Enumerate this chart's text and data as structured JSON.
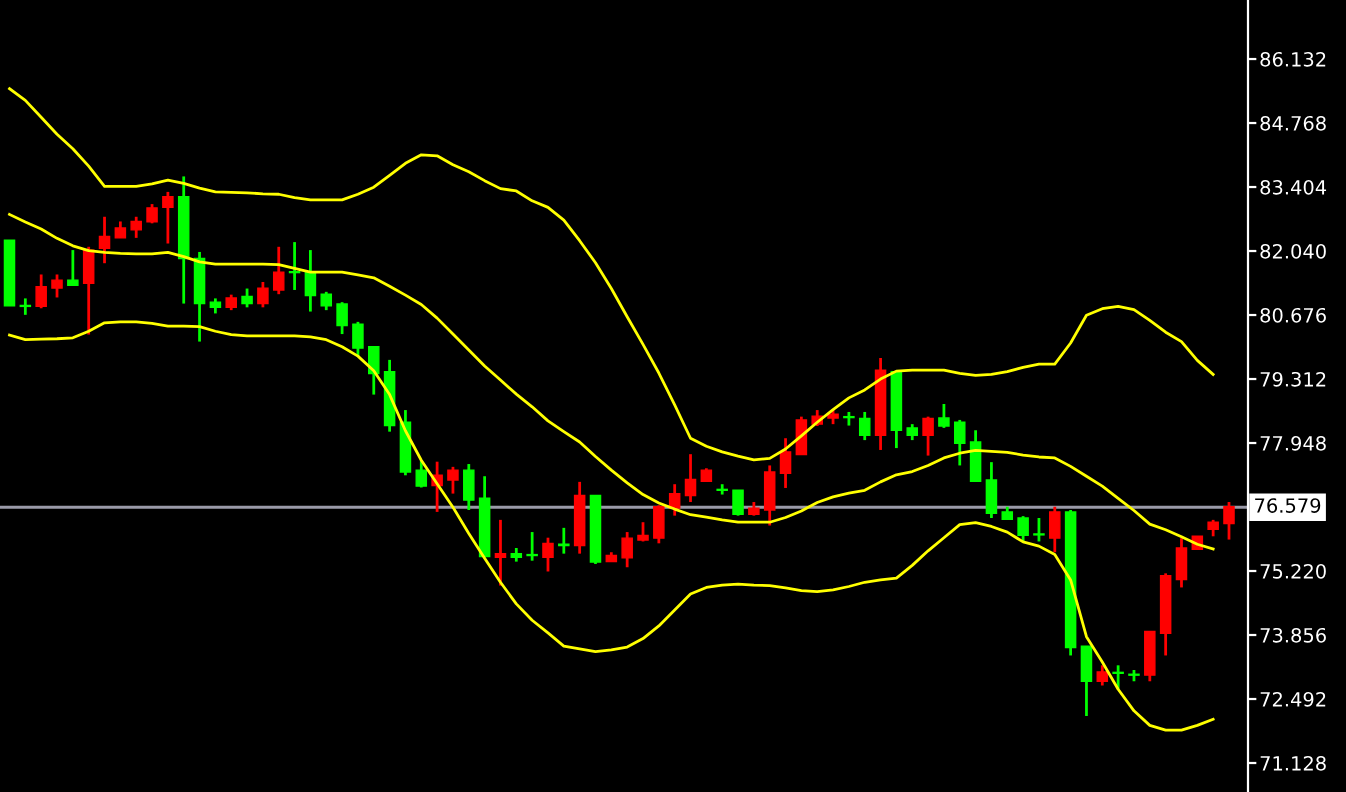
{
  "chart_data": {
    "type": "candlestick",
    "categories": [
      null,
      null,
      null,
      null,
      null,
      null,
      null,
      null,
      null,
      null,
      null,
      null,
      null,
      null,
      null,
      null,
      null,
      null,
      null,
      null,
      null,
      null,
      null,
      null,
      null,
      null,
      null,
      null,
      null,
      null,
      null,
      null,
      null,
      null,
      null,
      null,
      null,
      null,
      null,
      null,
      null,
      null,
      null,
      null,
      null,
      null,
      null,
      null,
      null,
      null,
      null,
      null,
      null,
      null,
      null,
      null,
      null,
      null,
      null,
      null,
      null,
      null,
      null,
      null,
      null,
      null,
      null,
      null,
      null,
      null,
      null,
      null,
      null,
      null,
      null,
      null,
      null,
      null
    ],
    "ohlc": [
      [
        82.27,
        82.27,
        80.87,
        80.87
      ],
      [
        80.86,
        81.03,
        80.68,
        80.86
      ],
      [
        80.86,
        81.54,
        80.82,
        81.28
      ],
      [
        81.25,
        81.54,
        81.05,
        81.42
      ],
      [
        81.42,
        82.06,
        81.31,
        81.31
      ],
      [
        81.35,
        82.13,
        80.26,
        82.06
      ],
      [
        82.1,
        82.77,
        81.78,
        82.35
      ],
      [
        82.32,
        82.67,
        82.32,
        82.53
      ],
      [
        82.49,
        82.77,
        82.32,
        82.67
      ],
      [
        82.66,
        83.04,
        82.63,
        82.96
      ],
      [
        82.97,
        83.3,
        82.2,
        83.2
      ],
      [
        83.2,
        83.63,
        80.92,
        81.88
      ],
      [
        81.88,
        82.02,
        80.11,
        80.92
      ],
      [
        80.95,
        81.03,
        80.71,
        80.84
      ],
      [
        80.84,
        81.11,
        80.78,
        81.04
      ],
      [
        81.07,
        81.24,
        80.84,
        80.92
      ],
      [
        80.92,
        81.38,
        80.84,
        81.25
      ],
      [
        81.21,
        82.13,
        81.12,
        81.59
      ],
      [
        81.6,
        82.23,
        81.21,
        81.58
      ],
      [
        81.59,
        82.06,
        80.75,
        81.09
      ],
      [
        81.12,
        81.17,
        80.78,
        80.87
      ],
      [
        80.91,
        80.95,
        80.27,
        80.45
      ],
      [
        80.48,
        80.53,
        79.79,
        79.97
      ],
      [
        80.0,
        80.0,
        78.98,
        79.43
      ],
      [
        79.47,
        79.72,
        78.19,
        78.32
      ],
      [
        78.39,
        78.65,
        77.26,
        77.33
      ],
      [
        77.37,
        77.58,
        77.0,
        77.03
      ],
      [
        77.04,
        77.55,
        76.48,
        77.26
      ],
      [
        77.16,
        77.44,
        76.87,
        77.37
      ],
      [
        77.37,
        77.5,
        76.52,
        76.73
      ],
      [
        76.77,
        77.24,
        75.53,
        75.53
      ],
      [
        75.51,
        76.31,
        74.91,
        75.59
      ],
      [
        75.59,
        75.71,
        75.42,
        75.51
      ],
      [
        75.55,
        76.05,
        75.44,
        75.55
      ],
      [
        75.51,
        75.93,
        75.21,
        75.81
      ],
      [
        75.79,
        76.14,
        75.59,
        75.76
      ],
      [
        75.76,
        77.12,
        75.59,
        76.83
      ],
      [
        76.83,
        76.83,
        75.37,
        75.41
      ],
      [
        75.42,
        75.62,
        75.42,
        75.55
      ],
      [
        75.5,
        76.05,
        75.3,
        75.92
      ],
      [
        75.88,
        76.26,
        75.85,
        75.98
      ],
      [
        75.92,
        76.62,
        75.81,
        76.59
      ],
      [
        76.56,
        77.07,
        76.4,
        76.87
      ],
      [
        76.83,
        77.71,
        76.69,
        77.17
      ],
      [
        77.13,
        77.41,
        77.13,
        77.37
      ],
      [
        76.94,
        77.07,
        76.85,
        76.94
      ],
      [
        76.94,
        76.94,
        76.4,
        76.43
      ],
      [
        76.43,
        76.69,
        76.4,
        76.56
      ],
      [
        76.52,
        77.47,
        76.19,
        77.33
      ],
      [
        77.3,
        78.05,
        76.99,
        77.76
      ],
      [
        77.7,
        78.51,
        77.7,
        78.44
      ],
      [
        78.35,
        78.65,
        78.31,
        78.52
      ],
      [
        78.48,
        78.65,
        78.35,
        78.56
      ],
      [
        78.49,
        78.61,
        78.32,
        78.49
      ],
      [
        78.47,
        78.61,
        78.01,
        78.11
      ],
      [
        78.11,
        79.76,
        77.8,
        79.5
      ],
      [
        79.47,
        79.47,
        77.84,
        78.22
      ],
      [
        78.27,
        78.35,
        78.01,
        78.11
      ],
      [
        78.11,
        78.51,
        77.68,
        78.47
      ],
      [
        78.48,
        78.78,
        78.27,
        78.31
      ],
      [
        78.39,
        78.44,
        77.47,
        77.94
      ],
      [
        77.97,
        78.22,
        77.13,
        77.13
      ],
      [
        77.16,
        77.54,
        76.35,
        76.45
      ],
      [
        76.48,
        76.59,
        76.32,
        76.32
      ],
      [
        76.35,
        76.39,
        75.85,
        75.98
      ],
      [
        75.99,
        76.35,
        75.85,
        75.99
      ],
      [
        75.92,
        76.59,
        75.62,
        76.48
      ],
      [
        76.48,
        76.52,
        73.42,
        73.59
      ],
      [
        73.62,
        73.62,
        72.13,
        72.87
      ],
      [
        72.87,
        73.21,
        72.78,
        73.07
      ],
      [
        73.04,
        73.21,
        72.7,
        73.04
      ],
      [
        73.0,
        73.11,
        72.87,
        73.0
      ],
      [
        73.0,
        73.93,
        72.87,
        73.93
      ],
      [
        73.89,
        75.17,
        73.42,
        75.12
      ],
      [
        75.04,
        75.92,
        74.87,
        75.71
      ],
      [
        75.68,
        75.96,
        75.68,
        75.96
      ],
      [
        76.11,
        76.31,
        75.96,
        76.26
      ],
      [
        76.23,
        76.69,
        75.89,
        76.59
      ]
    ],
    "colors": [
      "#00ff00",
      "#00ff00",
      "#ff0000",
      "#ff0000",
      "#00ff00",
      "#ff0000",
      "#ff0000",
      "#ff0000",
      "#ff0000",
      "#ff0000",
      "#ff0000",
      "#00ff00",
      "#00ff00",
      "#00ff00",
      "#ff0000",
      "#00ff00",
      "#ff0000",
      "#ff0000",
      "#00ff00",
      "#00ff00",
      "#00ff00",
      "#00ff00",
      "#00ff00",
      "#00ff00",
      "#00ff00",
      "#00ff00",
      "#00ff00",
      "#ff0000",
      "#ff0000",
      "#00ff00",
      "#00ff00",
      "#ff0000",
      "#00ff00",
      "#00ff00",
      "#ff0000",
      "#00ff00",
      "#ff0000",
      "#00ff00",
      "#ff0000",
      "#ff0000",
      "#ff0000",
      "#ff0000",
      "#ff0000",
      "#ff0000",
      "#ff0000",
      "#00ff00",
      "#00ff00",
      "#ff0000",
      "#ff0000",
      "#ff0000",
      "#ff0000",
      "#ff0000",
      "#ff0000",
      "#00ff00",
      "#00ff00",
      "#ff0000",
      "#00ff00",
      "#00ff00",
      "#ff0000",
      "#00ff00",
      "#00ff00",
      "#00ff00",
      "#00ff00",
      "#00ff00",
      "#00ff00",
      "#00ff00",
      "#ff0000",
      "#00ff00",
      "#00ff00",
      "#ff0000",
      "#00ff00",
      "#00ff00",
      "#ff0000",
      "#ff0000",
      "#ff0000",
      "#ff0000",
      "#ff0000",
      "#ff0000"
    ],
    "series": [
      {
        "type": "line",
        "color": "#ffff00",
        "values": [
          85.5,
          85.25,
          84.89,
          84.53,
          84.22,
          83.85,
          83.42,
          83.42,
          83.42,
          83.47,
          83.55,
          83.48,
          83.38,
          83.3,
          83.29,
          83.28,
          83.26,
          83.25,
          83.18,
          83.13,
          83.13,
          83.13,
          83.25,
          83.4,
          83.65,
          83.91,
          84.09,
          84.07,
          83.88,
          83.73,
          83.54,
          83.37,
          83.32,
          83.11,
          82.97,
          82.7,
          82.26,
          81.79,
          81.24,
          80.64,
          80.05,
          79.44,
          78.76,
          78.05,
          77.88,
          77.76,
          77.67,
          77.59,
          77.62,
          77.82,
          78.1,
          78.39,
          78.66,
          78.91,
          79.08,
          79.31,
          79.48,
          79.5,
          79.5,
          79.5,
          79.43,
          79.39,
          79.41,
          79.47,
          79.56,
          79.63,
          79.63,
          80.08,
          80.67,
          80.81,
          80.86,
          80.79,
          80.56,
          80.31,
          80.11,
          79.71,
          79.41,
          null
        ]
      },
      {
        "type": "line",
        "color": "#ffff00",
        "values": [
          82.82,
          82.66,
          82.51,
          82.31,
          82.15,
          82.05,
          82.01,
          81.99,
          81.98,
          81.98,
          82.01,
          81.92,
          81.81,
          81.76,
          81.76,
          81.76,
          81.76,
          81.75,
          81.67,
          81.59,
          81.59,
          81.59,
          81.53,
          81.47,
          81.29,
          81.1,
          80.9,
          80.61,
          80.27,
          79.93,
          79.59,
          79.29,
          78.99,
          78.72,
          78.42,
          78.19,
          77.97,
          77.66,
          77.37,
          77.1,
          76.85,
          76.67,
          76.54,
          76.42,
          76.37,
          76.31,
          76.26,
          76.26,
          76.26,
          76.36,
          76.5,
          76.68,
          76.8,
          76.88,
          76.94,
          77.12,
          77.27,
          77.34,
          77.47,
          77.63,
          77.73,
          77.79,
          77.77,
          77.75,
          77.69,
          77.65,
          77.63,
          77.45,
          77.24,
          77.03,
          76.77,
          76.51,
          76.22,
          76.1,
          75.95,
          75.79,
          75.69,
          null
        ]
      },
      {
        "type": "line",
        "color": "#ffff00",
        "values": [
          80.25,
          80.15,
          80.16,
          80.17,
          80.19,
          80.33,
          80.51,
          80.53,
          80.53,
          80.5,
          80.44,
          80.44,
          80.43,
          80.33,
          80.26,
          80.23,
          80.23,
          80.23,
          80.23,
          80.21,
          80.15,
          80.0,
          79.8,
          79.49,
          78.98,
          78.21,
          77.58,
          77.08,
          76.58,
          76.02,
          75.49,
          74.98,
          74.52,
          74.17,
          73.9,
          73.62,
          73.56,
          73.5,
          73.54,
          73.6,
          73.78,
          74.05,
          74.39,
          74.73,
          74.87,
          74.92,
          74.94,
          74.92,
          74.91,
          74.86,
          74.8,
          74.78,
          74.82,
          74.89,
          74.98,
          75.03,
          75.07,
          75.34,
          75.65,
          75.93,
          76.21,
          76.25,
          76.17,
          76.05,
          75.84,
          75.75,
          75.57,
          75.03,
          73.82,
          73.28,
          72.7,
          72.24,
          71.93,
          71.83,
          71.83,
          71.93,
          72.06,
          null
        ]
      }
    ],
    "ylim": [
      70.51,
      87.39
    ],
    "yticks": [
      {
        "value": 86.132,
        "label": "86.132"
      },
      {
        "value": 84.768,
        "label": "84.768"
      },
      {
        "value": 83.404,
        "label": "83.404"
      },
      {
        "value": 82.04,
        "label": "82.040"
      },
      {
        "value": 80.676,
        "label": "80.676"
      },
      {
        "value": 79.312,
        "label": "79.312"
      },
      {
        "value": 77.948,
        "label": "77.948"
      },
      {
        "value": 75.22,
        "label": "75.220"
      },
      {
        "value": 73.856,
        "label": "73.856"
      },
      {
        "value": 72.492,
        "label": "72.492"
      },
      {
        "value": 71.128,
        "label": "71.128"
      }
    ],
    "ref_lines": [
      {
        "axis": "y",
        "value": 76.579,
        "label": "76.579",
        "color": "#9a9aa8"
      }
    ],
    "grid": false
  }
}
